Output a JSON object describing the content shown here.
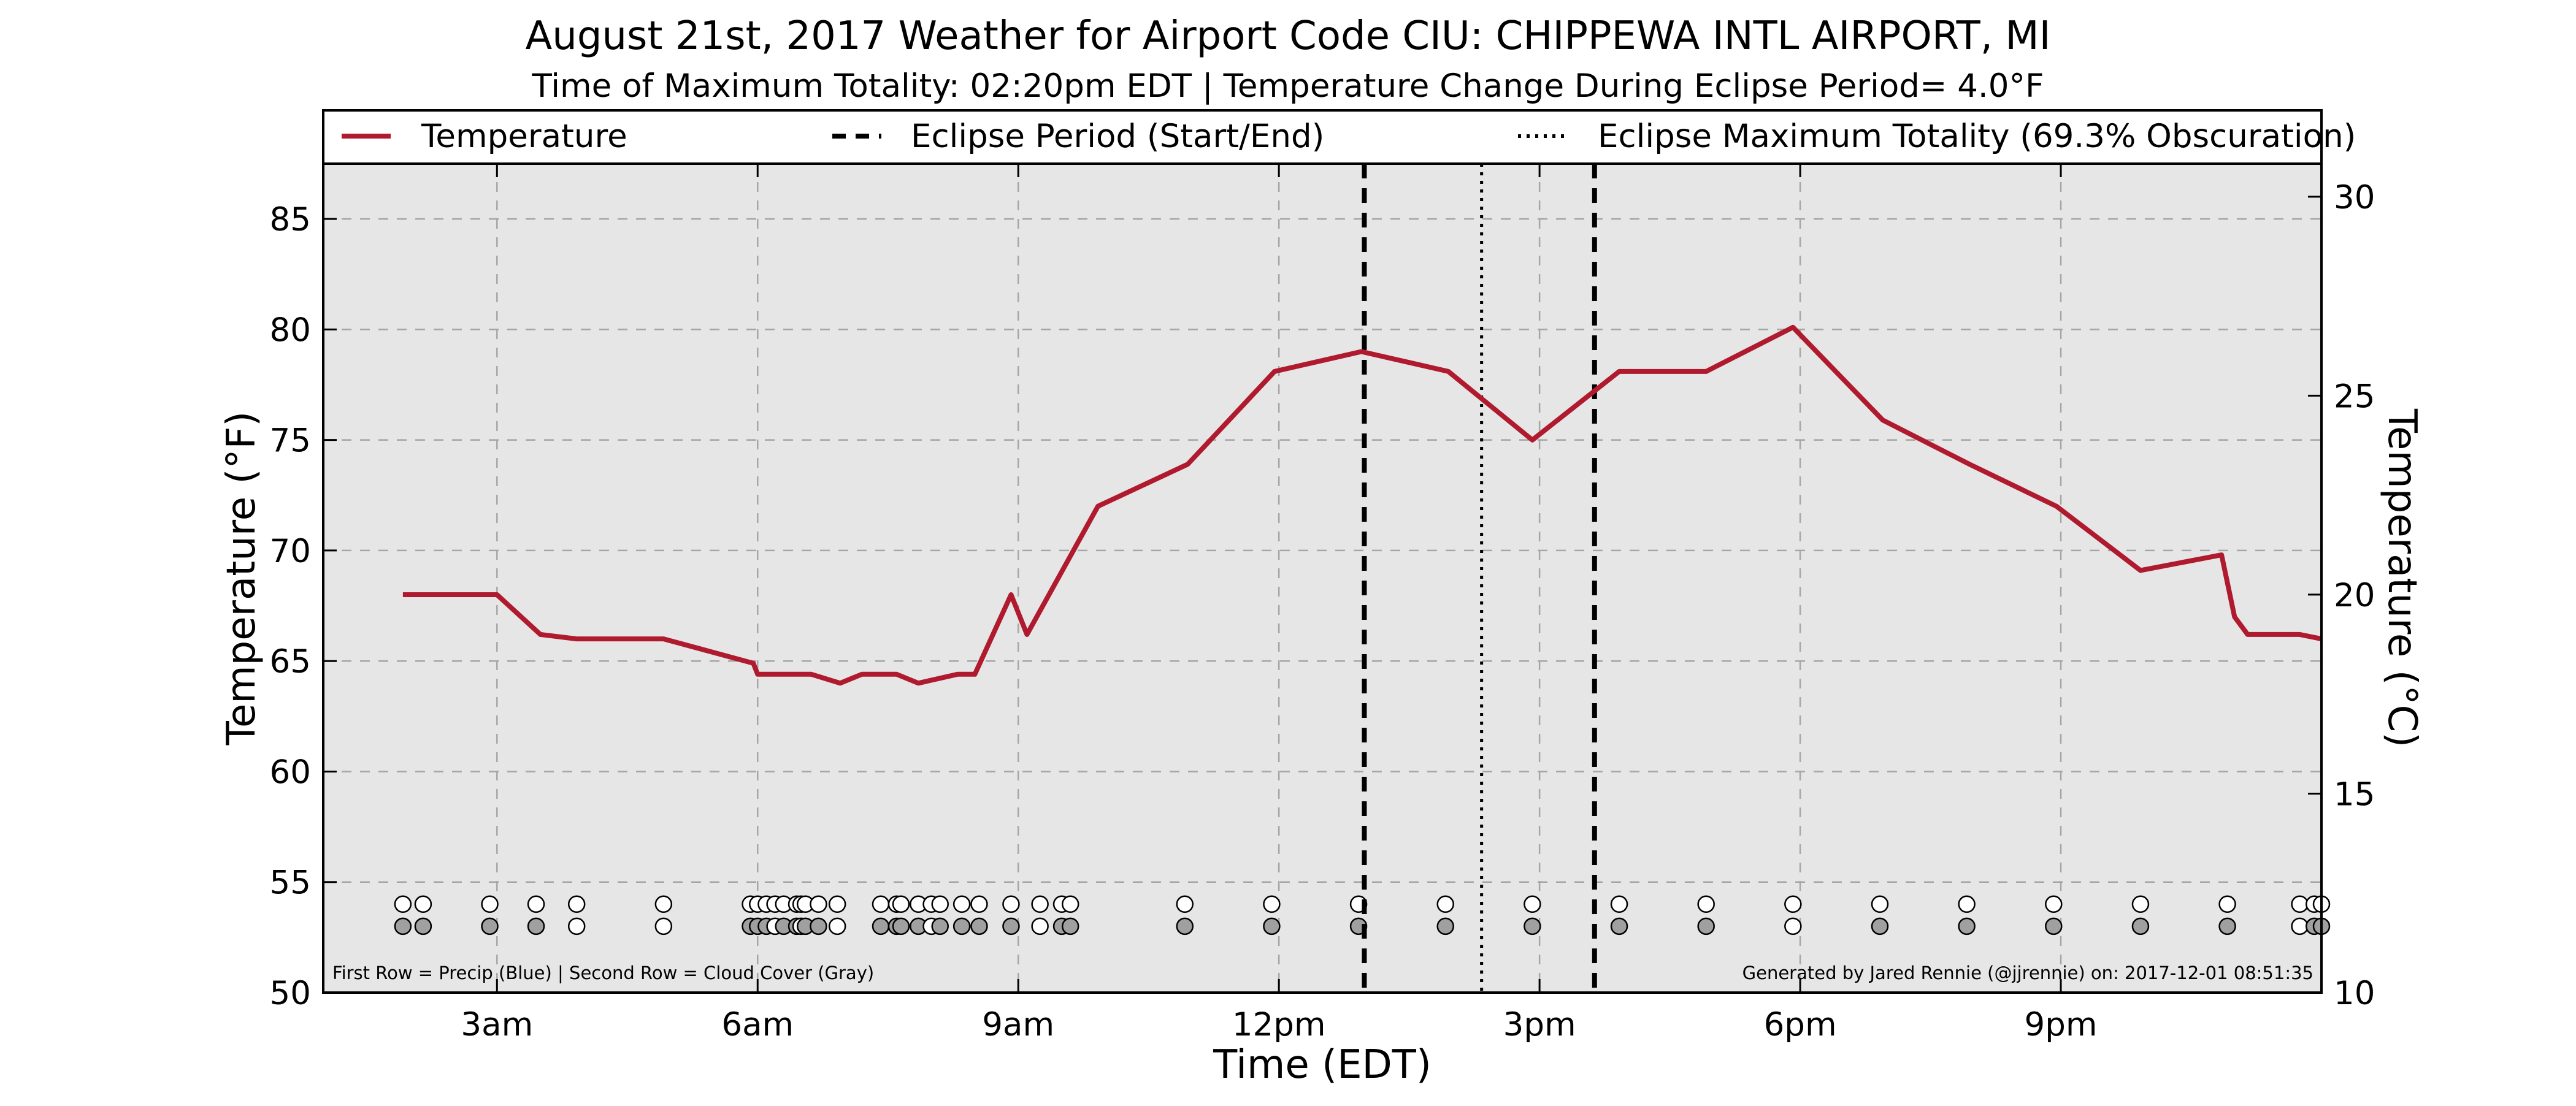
{
  "chart_data": {
    "type": "line",
    "title": "August 21st, 2017 Weather for Airport Code CIU: CHIPPEWA INTL AIRPORT, MI",
    "subtitle": "Time of Maximum Totality: 02:20pm EDT | Temperature Change During Eclipse Period= 4.0°F",
    "xlabel": "Time (EDT)",
    "ylabel": "Temperature (°F)",
    "ylabel_right": "Temperature (°C)",
    "xlim": [
      1.0,
      24.0
    ],
    "ylim": [
      50,
      87.5
    ],
    "ylim_right": [
      10,
      30.83
    ],
    "x_ticks": [
      {
        "x": 3,
        "label": "3am"
      },
      {
        "x": 6,
        "label": "6am"
      },
      {
        "x": 9,
        "label": "9am"
      },
      {
        "x": 12,
        "label": "12pm"
      },
      {
        "x": 15,
        "label": "3pm"
      },
      {
        "x": 18,
        "label": "6pm"
      },
      {
        "x": 21,
        "label": "9pm"
      }
    ],
    "y_ticks": [
      50,
      55,
      60,
      65,
      70,
      75,
      80,
      85
    ],
    "y_ticks_right": [
      10,
      15,
      20,
      25,
      30
    ],
    "grid": true,
    "legend_position": "top",
    "colors": {
      "temperature": "#b01a2e",
      "plot_bg": "#e6e6e6",
      "cloud_fill": "#a0a0a0",
      "precip_fill": "#ffffff"
    },
    "series": [
      {
        "name": "Temperature",
        "x": [
          1.917,
          3.0,
          3.5,
          3.917,
          4.917,
          5.95,
          6.0,
          6.617,
          6.95,
          7.2,
          7.6,
          7.85,
          8.3,
          8.5,
          8.917,
          9.1,
          9.917,
          10.95,
          11.95,
          12.95,
          13.95,
          14.917,
          15.917,
          16.917,
          17.917,
          18.95,
          19.95,
          20.95,
          21.917,
          22.85,
          23.0,
          23.15,
          23.75,
          24.0
        ],
        "y": [
          68.0,
          68.0,
          66.2,
          66.0,
          66.0,
          64.9,
          64.4,
          64.4,
          64.0,
          64.4,
          64.4,
          64.0,
          64.4,
          64.4,
          68.0,
          66.2,
          72.0,
          73.9,
          78.1,
          79.0,
          78.1,
          75.0,
          78.1,
          78.1,
          80.1,
          75.9,
          73.9,
          72.0,
          69.1,
          69.8,
          67.0,
          66.2,
          66.2,
          66.0
        ]
      }
    ],
    "eclipse_period": {
      "label": "Eclipse Period (Start/End)",
      "start": 12.983,
      "end": 15.633
    },
    "max_totality": {
      "label": "Eclipse Maximum Totality (69.3% Obscuration)",
      "x": 14.333
    },
    "markers": {
      "precip_row_y": 54.0,
      "cloud_row_y": 53.0,
      "precip_x": [
        1.917,
        2.15,
        2.917,
        3.45,
        3.917,
        4.917,
        5.917,
        6.0,
        6.1,
        6.2,
        6.3,
        6.45,
        6.5,
        6.55,
        6.7,
        6.917,
        7.417,
        7.6,
        7.65,
        7.85,
        8.0,
        8.1,
        8.35,
        8.55,
        8.917,
        9.25,
        9.5,
        9.6,
        10.917,
        11.917,
        12.917,
        13.917,
        14.917,
        15.917,
        16.917,
        17.917,
        18.917,
        19.917,
        20.917,
        21.917,
        22.917,
        23.75,
        23.917,
        24.0,
        24.05,
        24.1,
        24.2,
        24.25
      ],
      "cloud_x": [
        1.917,
        2.15,
        2.917,
        3.45,
        3.917,
        4.917,
        5.917,
        6.0,
        6.1,
        6.2,
        6.3,
        6.45,
        6.5,
        6.55,
        6.7,
        6.917,
        7.417,
        7.6,
        7.65,
        7.85,
        8.0,
        8.1,
        8.35,
        8.55,
        8.917,
        9.25,
        9.5,
        9.6,
        10.917,
        11.917,
        12.917,
        13.917,
        14.917,
        15.917,
        16.917,
        17.917,
        18.917,
        19.917,
        20.917,
        21.917,
        22.917,
        23.75,
        23.917,
        24.0,
        24.05,
        24.1,
        24.2,
        24.25
      ],
      "cloud_covered_x": [
        1.917,
        2.15,
        2.917,
        3.45,
        5.917,
        6.0,
        6.1,
        6.3,
        6.45,
        6.55,
        6.7,
        7.417,
        7.6,
        7.65,
        7.85,
        8.1,
        8.35,
        8.55,
        8.917,
        9.5,
        9.6,
        10.917,
        11.917,
        12.917,
        13.917,
        14.917,
        15.917,
        16.917,
        18.917,
        19.917,
        20.917,
        21.917,
        22.917,
        23.917,
        24.0,
        24.05,
        24.2,
        24.25
      ]
    },
    "footnote_left": "First Row = Precip (Blue) | Second Row = Cloud Cover (Gray)",
    "footnote_right": "Generated by Jared Rennie (@jjrennie) on: 2017-12-01 08:51:35"
  }
}
